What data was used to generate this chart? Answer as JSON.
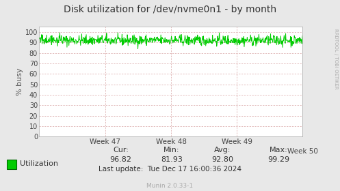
{
  "title": "Disk utilization for /dev/nvme0n1 - by month",
  "ylabel": "% busy",
  "yticks": [
    0,
    10,
    20,
    30,
    40,
    50,
    60,
    70,
    80,
    90,
    100
  ],
  "ylim": [
    0,
    105
  ],
  "background_color": "#e8e8e8",
  "plot_bg_color": "#ffffff",
  "line_color": "#00cc00",
  "grid_minor_color": "#ddaaaa",
  "x_week_labels": [
    "Week 47",
    "Week 48",
    "Week 49",
    "Week 50"
  ],
  "cur": "96.82",
  "min": "81.93",
  "avg": "92.80",
  "max": "99.29",
  "last_update": "Tue Dec 17 16:00:36 2024",
  "munin_version": "Munin 2.0.33-1",
  "watermark": "RRDTOOL / TOBI OETIKER",
  "legend_label": "Utilization",
  "n_points": 700,
  "seed": 42
}
